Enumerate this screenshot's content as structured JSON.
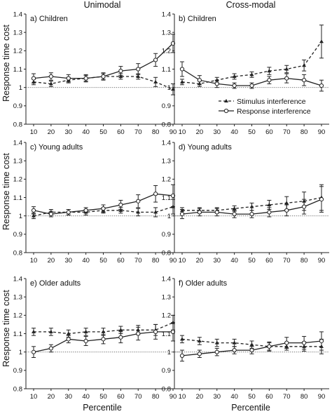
{
  "column_titles": [
    "Unimodal",
    "Cross-modal"
  ],
  "ylabel": "Response time cost",
  "xlabel": "Percentile",
  "legend": {
    "placement": "inside panel b, right",
    "stimulus": "Stimulus interference",
    "response": "Response interference"
  },
  "chart_data": [
    {
      "type": "line",
      "title": "a) Children",
      "x": [
        10,
        20,
        30,
        40,
        50,
        60,
        70,
        80,
        90
      ],
      "ylim": [
        0.8,
        1.4
      ],
      "yticks": [
        0.8,
        0.9,
        1,
        1.1,
        1.2,
        1.3,
        1.4
      ],
      "reference_line": 1,
      "series": [
        {
          "name": "Stimulus interference",
          "style": "dashed",
          "marker": "triangle",
          "values": [
            1.03,
            1.02,
            1.04,
            1.05,
            1.06,
            1.06,
            1.06,
            1.03,
            0.99
          ],
          "errors": [
            0.015,
            0.015,
            0.015,
            0.015,
            0.015,
            0.015,
            0.015,
            0.025,
            0.03
          ]
        },
        {
          "name": "Response interference",
          "style": "solid",
          "marker": "circle",
          "values": [
            1.05,
            1.06,
            1.05,
            1.05,
            1.06,
            1.09,
            1.1,
            1.15,
            1.24
          ],
          "errors": [
            0.025,
            0.02,
            0.02,
            0.02,
            0.02,
            0.025,
            0.03,
            0.035,
            0.05
          ]
        }
      ]
    },
    {
      "type": "line",
      "title": "b) Children",
      "x": [
        10,
        20,
        30,
        40,
        50,
        60,
        70,
        80,
        90
      ],
      "ylim": [
        0.8,
        1.4
      ],
      "yticks": [
        0.8,
        0.9,
        1,
        1.1,
        1.2,
        1.3,
        1.4
      ],
      "reference_line": 1,
      "series": [
        {
          "name": "Stimulus interference",
          "style": "dashed",
          "marker": "triangle",
          "values": [
            1.03,
            1.02,
            1.04,
            1.06,
            1.07,
            1.09,
            1.1,
            1.12,
            1.25
          ],
          "errors": [
            0.015,
            0.015,
            0.015,
            0.015,
            0.015,
            0.02,
            0.02,
            0.03,
            0.09
          ]
        },
        {
          "name": "Response interference",
          "style": "solid",
          "marker": "circle",
          "values": [
            1.1,
            1.04,
            1.02,
            1.01,
            1.01,
            1.04,
            1.05,
            1.04,
            1.01
          ],
          "errors": [
            0.04,
            0.025,
            0.02,
            0.015,
            0.015,
            0.02,
            0.025,
            0.03,
            0.03
          ]
        }
      ]
    },
    {
      "type": "line",
      "title": "c) Young adults",
      "x": [
        10,
        20,
        30,
        40,
        50,
        60,
        70,
        80,
        90
      ],
      "ylim": [
        0.8,
        1.4
      ],
      "yticks": [
        0.8,
        0.9,
        1,
        1.1,
        1.2,
        1.3,
        1.4
      ],
      "reference_line": 1,
      "series": [
        {
          "name": "Stimulus interference",
          "style": "dashed",
          "marker": "triangle",
          "values": [
            1.0,
            1.02,
            1.02,
            1.02,
            1.03,
            1.03,
            1.02,
            1.02,
            1.05
          ],
          "errors": [
            0.015,
            0.015,
            0.015,
            0.015,
            0.015,
            0.015,
            0.02,
            0.025,
            0.04
          ]
        },
        {
          "name": "Response interference",
          "style": "solid",
          "marker": "circle",
          "values": [
            1.03,
            1.01,
            1.02,
            1.03,
            1.04,
            1.06,
            1.08,
            1.12,
            1.11
          ],
          "errors": [
            0.02,
            0.015,
            0.015,
            0.015,
            0.02,
            0.025,
            0.035,
            0.045,
            0.06
          ]
        }
      ]
    },
    {
      "type": "line",
      "title": "d) Young adults",
      "x": [
        10,
        20,
        30,
        40,
        50,
        60,
        70,
        80,
        90
      ],
      "ylim": [
        0.8,
        1.4
      ],
      "yticks": [
        0.8,
        0.9,
        1,
        1.1,
        1.2,
        1.3,
        1.4
      ],
      "reference_line": 1,
      "series": [
        {
          "name": "Stimulus interference",
          "style": "dashed",
          "marker": "triangle",
          "values": [
            1.03,
            1.03,
            1.03,
            1.04,
            1.05,
            1.06,
            1.07,
            1.08,
            1.1
          ],
          "errors": [
            0.015,
            0.015,
            0.015,
            0.015,
            0.02,
            0.025,
            0.035,
            0.05,
            0.07
          ]
        },
        {
          "name": "Response interference",
          "style": "solid",
          "marker": "circle",
          "values": [
            1.01,
            1.02,
            1.02,
            1.01,
            1.01,
            1.02,
            1.03,
            1.05,
            1.09
          ],
          "errors": [
            0.025,
            0.02,
            0.02,
            0.02,
            0.02,
            0.025,
            0.03,
            0.04,
            0.07
          ]
        }
      ]
    },
    {
      "type": "line",
      "title": "e) Older adults",
      "x": [
        10,
        20,
        30,
        40,
        50,
        60,
        70,
        80,
        90
      ],
      "ylim": [
        0.8,
        1.4
      ],
      "yticks": [
        0.8,
        0.9,
        1,
        1.1,
        1.2,
        1.3,
        1.4
      ],
      "reference_line": 1,
      "series": [
        {
          "name": "Stimulus interference",
          "style": "dashed",
          "marker": "triangle",
          "values": [
            1.11,
            1.11,
            1.1,
            1.11,
            1.11,
            1.12,
            1.12,
            1.12,
            1.16
          ],
          "errors": [
            0.02,
            0.02,
            0.02,
            0.02,
            0.02,
            0.02,
            0.025,
            0.03,
            0.04
          ]
        },
        {
          "name": "Response interference",
          "style": "solid",
          "marker": "circle",
          "values": [
            1.0,
            1.02,
            1.07,
            1.06,
            1.07,
            1.08,
            1.1,
            1.11,
            1.11
          ],
          "errors": [
            0.03,
            0.02,
            0.02,
            0.025,
            0.025,
            0.03,
            0.035,
            0.04,
            0.05
          ]
        }
      ]
    },
    {
      "type": "line",
      "title": "f) Older adults",
      "x": [
        10,
        20,
        30,
        40,
        50,
        60,
        70,
        80,
        90
      ],
      "ylim": [
        0.8,
        1.4
      ],
      "yticks": [
        0.8,
        0.9,
        1,
        1.1,
        1.2,
        1.3,
        1.4
      ],
      "reference_line": 1,
      "series": [
        {
          "name": "Stimulus interference",
          "style": "dashed",
          "marker": "triangle",
          "values": [
            1.07,
            1.06,
            1.05,
            1.05,
            1.04,
            1.03,
            1.03,
            1.03,
            1.03
          ],
          "errors": [
            0.02,
            0.02,
            0.02,
            0.02,
            0.02,
            0.02,
            0.02,
            0.025,
            0.04
          ]
        },
        {
          "name": "Response interference",
          "style": "solid",
          "marker": "circle",
          "values": [
            0.98,
            0.99,
            1.0,
            1.01,
            1.01,
            1.03,
            1.05,
            1.05,
            1.06
          ],
          "errors": [
            0.03,
            0.02,
            0.02,
            0.02,
            0.02,
            0.025,
            0.03,
            0.035,
            0.05
          ]
        }
      ]
    }
  ]
}
